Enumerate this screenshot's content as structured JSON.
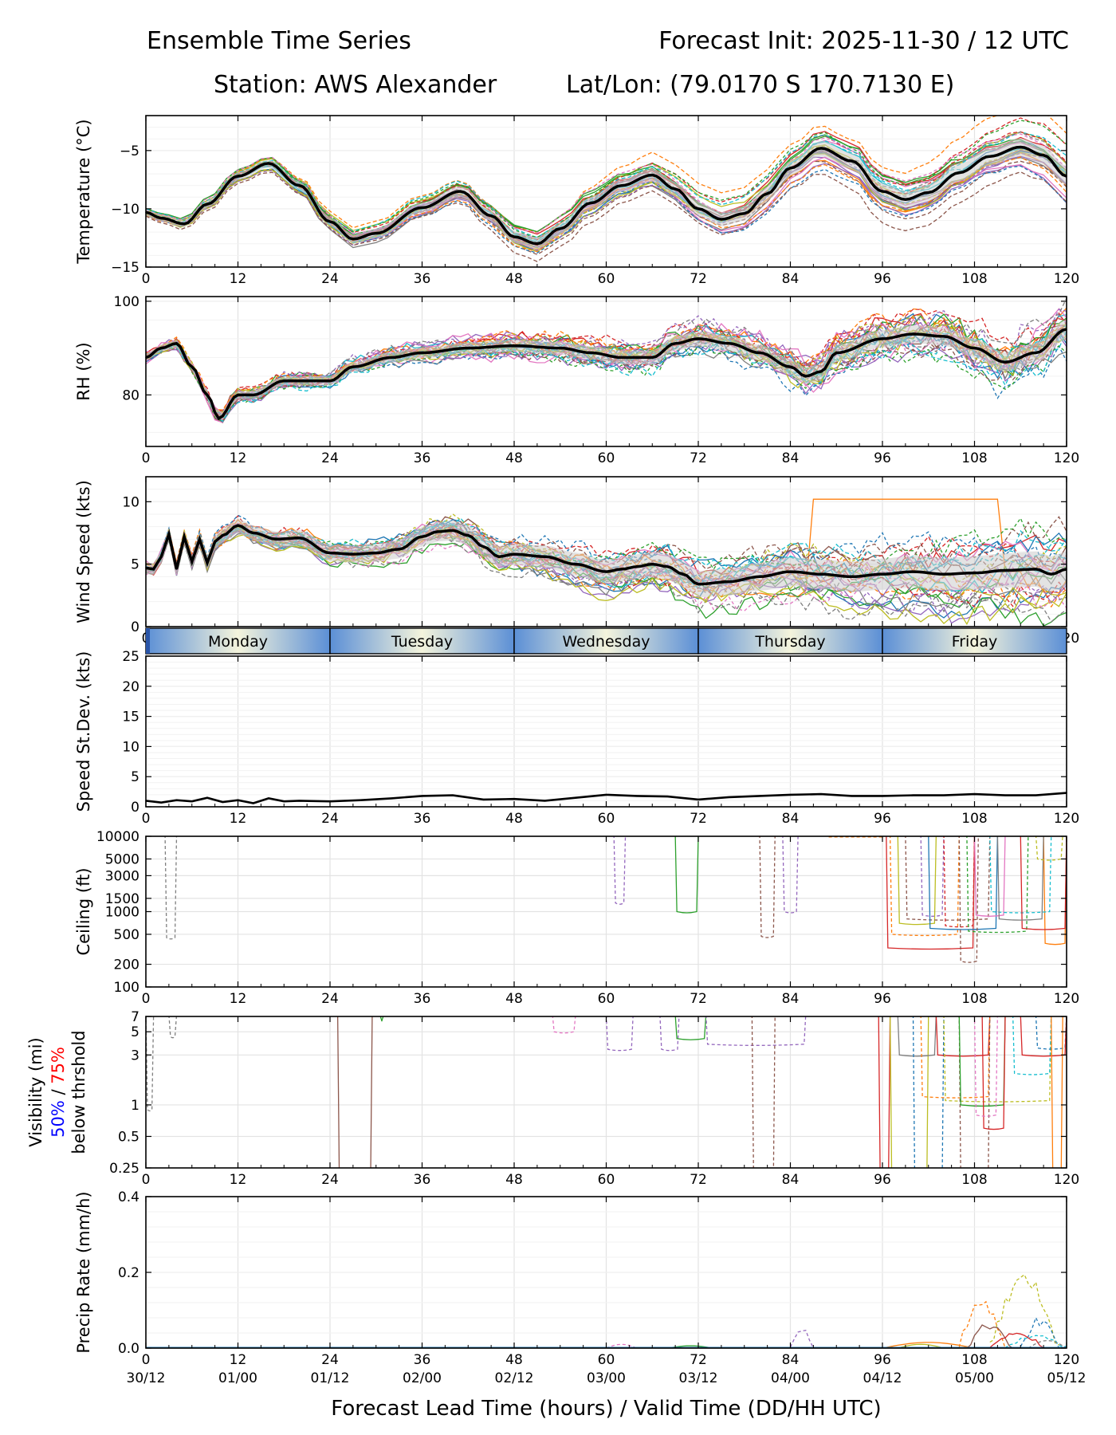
{
  "header": {
    "title_left": "Ensemble Time Series",
    "title_right": "Forecast Init: 2025-11-30 / 12 UTC",
    "station": "Station: AWS Alexander",
    "latlon": "Lat/Lon: (79.0170 S 170.7130 E)"
  },
  "x_axis": {
    "label": "Forecast Lead Time (hours) / Valid Time (DD/HH UTC)",
    "range": [
      0,
      120
    ],
    "ticks": [
      0,
      12,
      24,
      36,
      48,
      60,
      72,
      84,
      96,
      108,
      120
    ],
    "valid_time_labels": [
      "30/12",
      "01/00",
      "01/12",
      "02/00",
      "02/12",
      "03/00",
      "03/12",
      "04/00",
      "04/12",
      "05/00",
      "05/12"
    ]
  },
  "day_band": {
    "days": [
      {
        "label": "Monday",
        "start": 0,
        "end": 24
      },
      {
        "label": "Tuesday",
        "start": 24,
        "end": 48
      },
      {
        "label": "Wednesday",
        "start": 48,
        "end": 72
      },
      {
        "label": "Thursday",
        "start": 72,
        "end": 96
      },
      {
        "label": "Friday",
        "start": 96,
        "end": 120
      }
    ]
  },
  "colors": {
    "ensemble": [
      "#1f77b4",
      "#ff7f0e",
      "#2ca02c",
      "#d62728",
      "#9467bd",
      "#8c564b",
      "#e377c2",
      "#7f7f7f",
      "#bcbd22",
      "#17becf"
    ],
    "mean": "#000000",
    "spread": "#cccccc",
    "vis_50": "#0000ff",
    "vis_75": "#ff0000",
    "grid": "#e3e3e3",
    "day_blue": "#5b8fd6",
    "day_cream": "#f4f4dc"
  },
  "chart_data": [
    {
      "id": "temperature",
      "type": "line",
      "ylabel": "Temperature (°C)",
      "ylim": [
        -15,
        -2
      ],
      "yticks": [
        -15,
        -10,
        -5
      ],
      "yticklabels": [
        "−15",
        "−10",
        "−5"
      ],
      "x": [
        0,
        2,
        5,
        8,
        12,
        16,
        20,
        24,
        27,
        30,
        36,
        41,
        45,
        48,
        51,
        54,
        58,
        62,
        66,
        69,
        72,
        75,
        78,
        81,
        84,
        88,
        92,
        96,
        99,
        102,
        106,
        110,
        114,
        117,
        120
      ],
      "mean": [
        -10.3,
        -10.8,
        -11.3,
        -9.6,
        -7.2,
        -6.1,
        -8.0,
        -11.1,
        -12.6,
        -12.1,
        -9.9,
        -8.5,
        -10.6,
        -12.4,
        -13.0,
        -11.7,
        -9.5,
        -8.0,
        -7.1,
        -8.3,
        -10.0,
        -10.9,
        -10.4,
        -8.7,
        -6.5,
        -4.8,
        -5.9,
        -8.5,
        -9.2,
        -8.6,
        -6.9,
        -5.5,
        -4.7,
        -5.4,
        -7.2
      ],
      "spread": 0.45
    },
    {
      "id": "rh",
      "type": "line",
      "ylabel": "RH (%)",
      "ylim": [
        69,
        101
      ],
      "yticks": [
        80,
        100
      ],
      "yticklabels": [
        "80",
        "100"
      ],
      "x": [
        0,
        2,
        4,
        6,
        8,
        9.5,
        12,
        14,
        18,
        24,
        27,
        32,
        36,
        42,
        48,
        54,
        58,
        62,
        66,
        69,
        72,
        76,
        80,
        84,
        86,
        88,
        90,
        96,
        100,
        104,
        108,
        112,
        116,
        120
      ],
      "mean": [
        88,
        90,
        91,
        86,
        80,
        75,
        80,
        80,
        83,
        83,
        86,
        88,
        89,
        90,
        90.5,
        90,
        89,
        88,
        88,
        91,
        92,
        91,
        89,
        86,
        84,
        85,
        89,
        92,
        93,
        92.5,
        90,
        87,
        89,
        94
      ],
      "spread": 1.2
    },
    {
      "id": "wind",
      "type": "line",
      "ylabel": "Wind Speed (kts)",
      "ylim": [
        0,
        12
      ],
      "yticks": [
        0,
        5,
        10
      ],
      "yticklabels": [
        "0",
        "5",
        "10"
      ],
      "x": [
        0,
        1,
        2,
        3,
        4,
        5,
        6,
        7,
        8,
        9,
        10,
        12,
        14,
        17,
        20,
        24,
        27,
        30,
        33,
        36,
        38,
        40,
        42,
        44,
        46,
        48,
        52,
        56,
        60,
        62,
        64,
        66,
        68,
        70,
        72,
        76,
        80,
        84,
        88,
        92,
        96,
        100,
        104,
        108,
        112,
        116,
        118,
        120
      ],
      "mean": [
        4.7,
        4.6,
        5.6,
        7.4,
        4.6,
        7.2,
        5.2,
        7.0,
        5.1,
        6.8,
        7.3,
        8.1,
        7.5,
        7.0,
        7.1,
        5.9,
        5.8,
        5.9,
        6.2,
        7.2,
        7.6,
        7.7,
        7.3,
        6.4,
        5.6,
        5.8,
        5.6,
        5.0,
        4.4,
        4.6,
        4.8,
        5.0,
        4.8,
        4.2,
        3.4,
        3.6,
        4.0,
        4.4,
        4.2,
        4.0,
        4.2,
        4.4,
        4.2,
        4.3,
        4.5,
        4.6,
        4.2,
        4.6
      ],
      "spread": 0.8
    },
    {
      "id": "stdev",
      "type": "line",
      "ylabel": "Speed St.Dev. (kts)",
      "ylim": [
        0,
        25
      ],
      "yticks": [
        0,
        5,
        10,
        15,
        20,
        25
      ],
      "yticklabels": [
        "0",
        "5",
        "10",
        "15",
        "20",
        "25"
      ],
      "x": [
        0,
        2,
        4,
        6,
        8,
        10,
        12,
        14,
        16,
        18,
        20,
        24,
        28,
        32,
        36,
        40,
        44,
        48,
        52,
        56,
        60,
        64,
        68,
        72,
        76,
        80,
        84,
        88,
        92,
        96,
        100,
        104,
        108,
        112,
        116,
        120
      ],
      "values": [
        1.0,
        0.7,
        1.1,
        0.9,
        1.5,
        0.8,
        1.1,
        0.6,
        1.4,
        0.9,
        1.0,
        0.9,
        1.1,
        1.4,
        1.8,
        1.9,
        1.2,
        1.3,
        1.0,
        1.5,
        2.0,
        1.8,
        1.7,
        1.2,
        1.6,
        1.8,
        2.0,
        2.1,
        1.8,
        1.8,
        1.9,
        1.9,
        2.1,
        1.9,
        1.9,
        2.3
      ]
    },
    {
      "id": "ceiling",
      "type": "line",
      "ylabel": "Ceiling (ft)",
      "yscale": "log",
      "ylim": [
        100,
        10000
      ],
      "yticks": [
        100,
        200,
        500,
        1000,
        1500,
        3000,
        5000,
        10000
      ],
      "yticklabels": [
        "100",
        "200",
        "500",
        "1000",
        "1500",
        "3000",
        "5000",
        "10000"
      ]
    },
    {
      "id": "visibility",
      "type": "line",
      "ylabel": "Visibility (mi)",
      "ylabel_50": "50%",
      "ylabel_sep": " / ",
      "ylabel_75": "75%",
      "ylabel_2": "below thrshold",
      "yscale": "log",
      "ylim": [
        0.25,
        7
      ],
      "yticks": [
        0.25,
        0.5,
        1,
        3,
        5,
        7
      ],
      "yticklabels": [
        "0.25",
        "0.5",
        "1",
        "3",
        "5",
        "7"
      ]
    },
    {
      "id": "precip",
      "type": "line",
      "ylabel": "Precip Rate (mm/h)",
      "ylim": [
        0,
        0.4
      ],
      "yticks": [
        0,
        0.2,
        0.4
      ],
      "yticklabels": [
        "0.0",
        "0.2",
        "0.4"
      ]
    }
  ]
}
